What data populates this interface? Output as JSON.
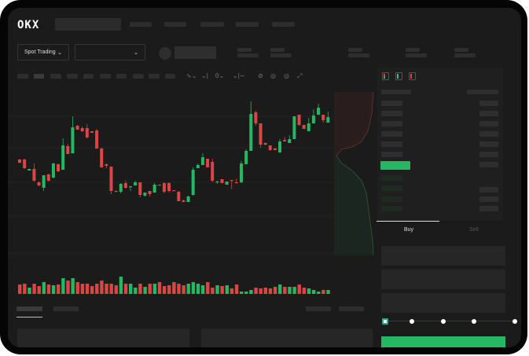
{
  "header": {
    "logo": "OKX",
    "market_selector": "Spot Trading"
  },
  "toolbar_icons": [
    "indicator-icon",
    "indicator-settings-icon",
    "chart-type-icon",
    "line-tool-icon",
    "draw-icon",
    "snapshot-icon",
    "settings-icon",
    "fullscreen-icon"
  ],
  "order_form": {
    "buy_tab": "Buy",
    "sell_tab": "Sell",
    "leverage_slider_value": 0
  },
  "colors": {
    "up": "#25b761",
    "down": "#dd4444",
    "background": "#1b1b1b"
  },
  "chart_data": {
    "type": "candlestick",
    "ylim": [
      -25,
      195
    ],
    "grid": true,
    "candles": [
      [
        97,
        93,
        98,
        92
      ],
      [
        97,
        86,
        98,
        85
      ],
      [
        83,
        85,
        85,
        83
      ],
      [
        85,
        70,
        92,
        69
      ],
      [
        68,
        64,
        69,
        63
      ],
      [
        61,
        77,
        77,
        57
      ],
      [
        78,
        70,
        79,
        69
      ],
      [
        74,
        92,
        93,
        73
      ],
      [
        91,
        82,
        92,
        81
      ],
      [
        84,
        115,
        124,
        84
      ],
      [
        114,
        104,
        117,
        104
      ],
      [
        105,
        138,
        152,
        105
      ],
      [
        140,
        135,
        141,
        135
      ],
      [
        137,
        133,
        139,
        132
      ],
      [
        137,
        125,
        142,
        124
      ],
      [
        133,
        131,
        133,
        131
      ],
      [
        134,
        111,
        136,
        111
      ],
      [
        111,
        87,
        112,
        87
      ],
      [
        91,
        89,
        92,
        86
      ],
      [
        88,
        57,
        88,
        53
      ],
      [
        57,
        56,
        58,
        56
      ],
      [
        56,
        66,
        67,
        54
      ],
      [
        67,
        61,
        70,
        60
      ],
      [
        62,
        63,
        63,
        57
      ],
      [
        64,
        68,
        70,
        64
      ],
      [
        68,
        52,
        68,
        49
      ],
      [
        51,
        55,
        55,
        50
      ],
      [
        57,
        53,
        57,
        50
      ],
      [
        55,
        65,
        67,
        55
      ],
      [
        65,
        64,
        65,
        64
      ],
      [
        67,
        56,
        68,
        54
      ],
      [
        67,
        57,
        68,
        55
      ],
      [
        58,
        57,
        58,
        57
      ],
      [
        56,
        44,
        57,
        44
      ],
      [
        45,
        43,
        46,
        43
      ],
      [
        43,
        50,
        51,
        43
      ],
      [
        52,
        84,
        87,
        51
      ],
      [
        86,
        90,
        92,
        86
      ],
      [
        90,
        100,
        105,
        90
      ],
      [
        98,
        87,
        98,
        87
      ],
      [
        94,
        70,
        98,
        68
      ],
      [
        68,
        69,
        70,
        66
      ],
      [
        72,
        67,
        72,
        67
      ],
      [
        65,
        69,
        69,
        65
      ],
      [
        71,
        70,
        71,
        59
      ],
      [
        68,
        67,
        73,
        67
      ],
      [
        68,
        92,
        95,
        67
      ],
      [
        91,
        108,
        110,
        91
      ],
      [
        108,
        155,
        171,
        108
      ],
      [
        157,
        143,
        159,
        140
      ],
      [
        143,
        116,
        143,
        112
      ],
      [
        118,
        116,
        119,
        115
      ],
      [
        115,
        109,
        115,
        108
      ],
      [
        111,
        109,
        112,
        109
      ],
      [
        106,
        120,
        123,
        106
      ],
      [
        122,
        120,
        126,
        120
      ],
      [
        118,
        123,
        128,
        118
      ],
      [
        123,
        152,
        152,
        123
      ],
      [
        154,
        141,
        154,
        140
      ],
      [
        141,
        136,
        141,
        136
      ],
      [
        133,
        143,
        150,
        133
      ],
      [
        143,
        153,
        161,
        143
      ],
      [
        154,
        163,
        168,
        154
      ],
      [
        154,
        147,
        154,
        144
      ],
      [
        144,
        151,
        158,
        144
      ]
    ],
    "volumes": [
      12,
      13,
      8,
      13,
      10,
      15,
      12,
      11,
      12,
      20,
      17,
      20,
      15,
      13,
      13,
      10,
      13,
      17,
      13,
      13,
      11,
      22,
      13,
      13,
      8,
      13,
      9,
      13,
      13,
      15,
      10,
      11,
      15,
      13,
      11,
      13,
      15,
      13,
      11,
      15,
      8,
      11,
      10,
      11,
      7,
      12,
      3,
      3,
      5,
      8,
      7,
      8,
      7,
      9,
      12,
      9,
      9,
      9,
      12,
      8,
      7,
      5,
      3,
      5,
      5
    ]
  }
}
